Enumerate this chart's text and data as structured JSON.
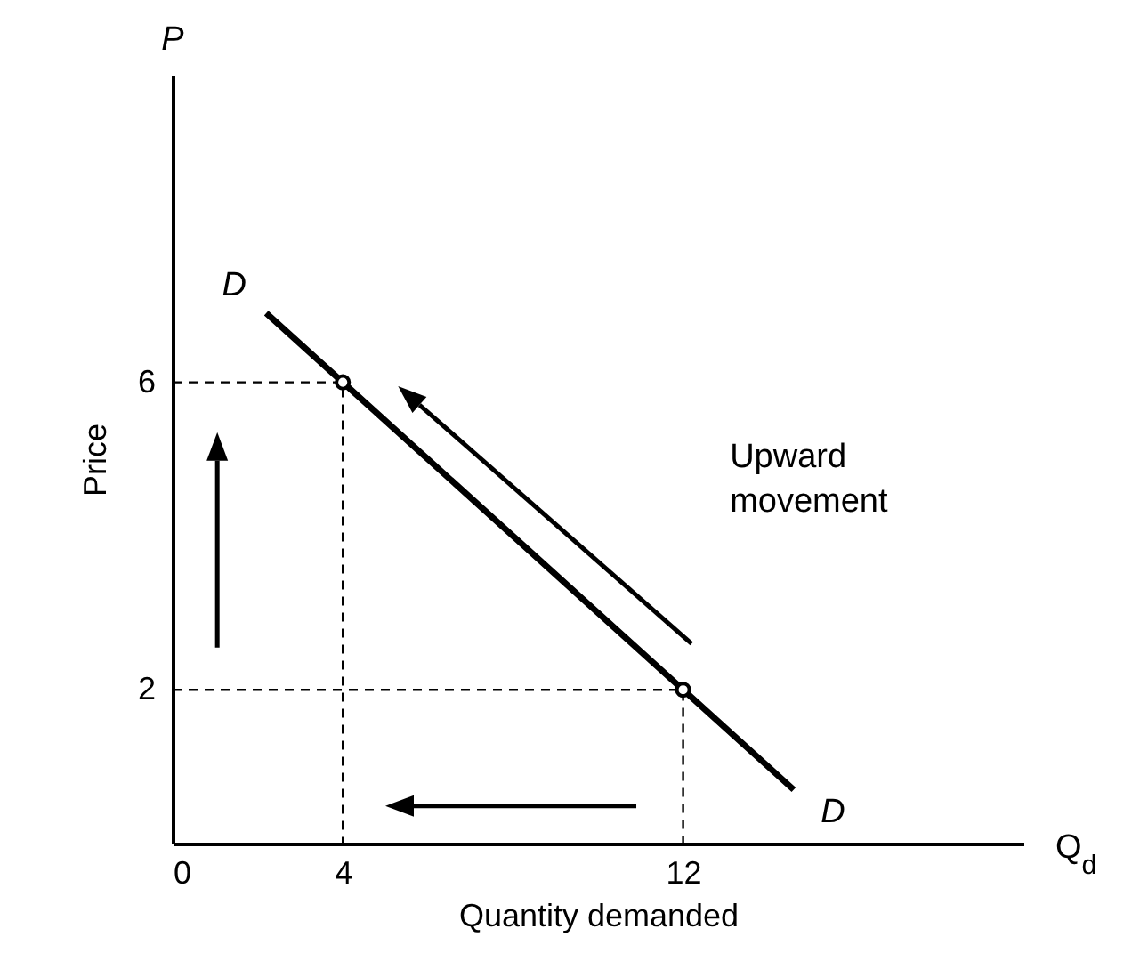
{
  "chart_data": {
    "type": "line",
    "xlabel": "Quantity demanded",
    "ylabel": "Price",
    "annotations": [
      "P",
      "Q$_{d}$",
      "Upward movement"
    ],
    "xlim": [
      0,
      20
    ],
    "ylim": [
      0,
      10
    ],
    "xticks": [
      0,
      4,
      12
    ],
    "yticks": [
      2,
      6
    ],
    "grid": false,
    "series": [
      {
        "name": "D",
        "type": "line",
        "x": [
          2.2,
          4,
          12,
          14.6
        ],
        "values": [
          6.9,
          6,
          2,
          0.7
        ],
        "color": "#000000",
        "line_style": "solid"
      },
      {
        "type": "line",
        "x": [
          0,
          4,
          4
        ],
        "values": [
          6,
          6,
          0
        ],
        "color": "#000000",
        "line_style": "dashed"
      },
      {
        "type": "line",
        "x": [
          0,
          12,
          12
        ],
        "values": [
          2,
          2,
          0
        ],
        "color": "#000000",
        "line_style": "dashed"
      },
      {
        "type": "scatter",
        "x": [
          4,
          12
        ],
        "values": [
          6,
          2
        ],
        "color": "#000000",
        "marker": "circle"
      }
    ]
  }
}
